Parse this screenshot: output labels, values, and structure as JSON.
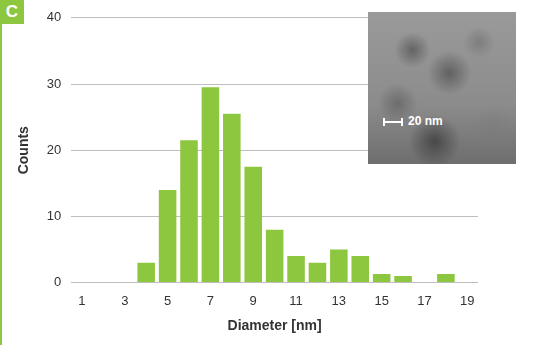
{
  "chart_data": {
    "type": "bar",
    "annotations": [
      "C",
      "20 nm"
    ],
    "x_label": "Diameter [nm]",
    "y_label": "Counts",
    "categories": [
      "1",
      null,
      "3",
      null,
      "5",
      null,
      "7",
      null,
      "9",
      null,
      "11",
      null,
      "13",
      null,
      "15",
      null,
      "17",
      null,
      "19"
    ],
    "values": [
      0,
      0,
      0,
      3,
      14,
      21.5,
      29.5,
      25.5,
      17.5,
      8,
      4,
      3,
      5,
      4,
      1.3,
      1,
      0,
      1.3,
      0
    ],
    "color": "#8dc63f",
    "ylim": [
      0,
      40
    ],
    "yticks": [
      0,
      10,
      20,
      30,
      40
    ],
    "grid": true
  }
}
